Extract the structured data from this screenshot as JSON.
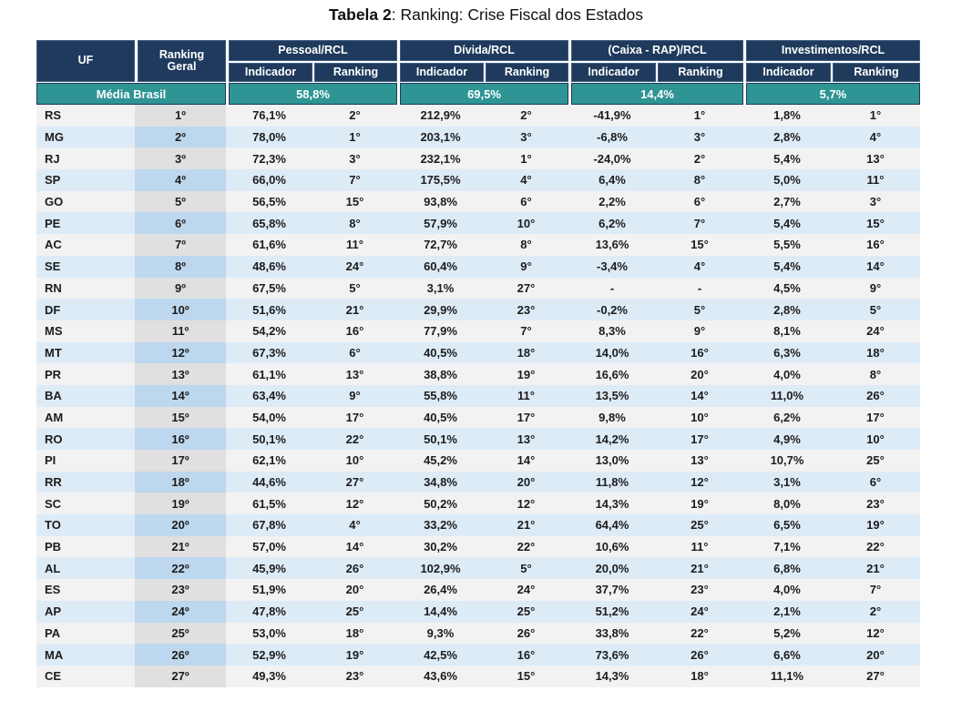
{
  "title": {
    "bold": "Tabela 2",
    "rest": ": Ranking: Crise Fiscal dos Estados"
  },
  "header": {
    "uf": "UF",
    "ranking_geral_line1": "Ranking",
    "ranking_geral_line2": "Geral",
    "groups": [
      {
        "label": "Pessoal/RCL",
        "sub": [
          "Indicador",
          "Ranking"
        ]
      },
      {
        "label": "Dívida/RCL",
        "sub": [
          "Indicador",
          "Ranking"
        ]
      },
      {
        "label": "(Caixa - RAP)/RCL",
        "sub": [
          "Indicador",
          "Ranking"
        ]
      },
      {
        "label": "Investimentos/RCL",
        "sub": [
          "Indicador",
          "Ranking"
        ]
      }
    ]
  },
  "media": {
    "label": "Média Brasil",
    "values": [
      "58,8%",
      "69,5%",
      "14,4%",
      "5,7%"
    ]
  },
  "rows": [
    {
      "uf": "RS",
      "geral": "1º",
      "cells": [
        "76,1%",
        "2°",
        "212,9%",
        "2°",
        "-41,9%",
        "1°",
        "1,8%",
        "1°"
      ]
    },
    {
      "uf": "MG",
      "geral": "2º",
      "cells": [
        "78,0%",
        "1°",
        "203,1%",
        "3°",
        "-6,8%",
        "3°",
        "2,8%",
        "4°"
      ]
    },
    {
      "uf": "RJ",
      "geral": "3º",
      "cells": [
        "72,3%",
        "3°",
        "232,1%",
        "1°",
        "-24,0%",
        "2°",
        "5,4%",
        "13°"
      ]
    },
    {
      "uf": "SP",
      "geral": "4º",
      "cells": [
        "66,0%",
        "7°",
        "175,5%",
        "4°",
        "6,4%",
        "8°",
        "5,0%",
        "11°"
      ]
    },
    {
      "uf": "GO",
      "geral": "5º",
      "cells": [
        "56,5%",
        "15°",
        "93,8%",
        "6°",
        "2,2%",
        "6°",
        "2,7%",
        "3°"
      ]
    },
    {
      "uf": "PE",
      "geral": "6º",
      "cells": [
        "65,8%",
        "8°",
        "57,9%",
        "10°",
        "6,2%",
        "7°",
        "5,4%",
        "15°"
      ]
    },
    {
      "uf": "AC",
      "geral": "7º",
      "cells": [
        "61,6%",
        "11°",
        "72,7%",
        "8°",
        "13,6%",
        "15°",
        "5,5%",
        "16°"
      ]
    },
    {
      "uf": "SE",
      "geral": "8º",
      "cells": [
        "48,6%",
        "24°",
        "60,4%",
        "9°",
        "-3,4%",
        "4°",
        "5,4%",
        "14°"
      ]
    },
    {
      "uf": "RN",
      "geral": "9º",
      "cells": [
        "67,5%",
        "5°",
        "3,1%",
        "27°",
        "-",
        "-",
        "4,5%",
        "9°"
      ]
    },
    {
      "uf": "DF",
      "geral": "10º",
      "cells": [
        "51,6%",
        "21°",
        "29,9%",
        "23°",
        "-0,2%",
        "5°",
        "2,8%",
        "5°"
      ]
    },
    {
      "uf": "MS",
      "geral": "11º",
      "cells": [
        "54,2%",
        "16°",
        "77,9%",
        "7°",
        "8,3%",
        "9°",
        "8,1%",
        "24°"
      ]
    },
    {
      "uf": "MT",
      "geral": "12º",
      "cells": [
        "67,3%",
        "6°",
        "40,5%",
        "18°",
        "14,0%",
        "16°",
        "6,3%",
        "18°"
      ]
    },
    {
      "uf": "PR",
      "geral": "13º",
      "cells": [
        "61,1%",
        "13°",
        "38,8%",
        "19°",
        "16,6%",
        "20°",
        "4,0%",
        "8°"
      ]
    },
    {
      "uf": "BA",
      "geral": "14º",
      "cells": [
        "63,4%",
        "9°",
        "55,8%",
        "11°",
        "13,5%",
        "14°",
        "11,0%",
        "26°"
      ]
    },
    {
      "uf": "AM",
      "geral": "15º",
      "cells": [
        "54,0%",
        "17°",
        "40,5%",
        "17°",
        "9,8%",
        "10°",
        "6,2%",
        "17°"
      ]
    },
    {
      "uf": "RO",
      "geral": "16º",
      "cells": [
        "50,1%",
        "22°",
        "50,1%",
        "13°",
        "14,2%",
        "17°",
        "4,9%",
        "10°"
      ]
    },
    {
      "uf": "PI",
      "geral": "17º",
      "cells": [
        "62,1%",
        "10°",
        "45,2%",
        "14°",
        "13,0%",
        "13°",
        "10,7%",
        "25°"
      ]
    },
    {
      "uf": "RR",
      "geral": "18º",
      "cells": [
        "44,6%",
        "27°",
        "34,8%",
        "20°",
        "11,8%",
        "12°",
        "3,1%",
        "6°"
      ]
    },
    {
      "uf": "SC",
      "geral": "19º",
      "cells": [
        "61,5%",
        "12°",
        "50,2%",
        "12°",
        "14,3%",
        "19°",
        "8,0%",
        "23°"
      ]
    },
    {
      "uf": "TO",
      "geral": "20º",
      "cells": [
        "67,8%",
        "4°",
        "33,2%",
        "21°",
        "64,4%",
        "25°",
        "6,5%",
        "19°"
      ]
    },
    {
      "uf": "PB",
      "geral": "21º",
      "cells": [
        "57,0%",
        "14°",
        "30,2%",
        "22°",
        "10,6%",
        "11°",
        "7,1%",
        "22°"
      ]
    },
    {
      "uf": "AL",
      "geral": "22º",
      "cells": [
        "45,9%",
        "26°",
        "102,9%",
        "5°",
        "20,0%",
        "21°",
        "6,8%",
        "21°"
      ]
    },
    {
      "uf": "ES",
      "geral": "23º",
      "cells": [
        "51,9%",
        "20°",
        "26,4%",
        "24°",
        "37,7%",
        "23°",
        "4,0%",
        "7°"
      ]
    },
    {
      "uf": "AP",
      "geral": "24º",
      "cells": [
        "47,8%",
        "25°",
        "14,4%",
        "25°",
        "51,2%",
        "24°",
        "2,1%",
        "2°"
      ]
    },
    {
      "uf": "PA",
      "geral": "25º",
      "cells": [
        "53,0%",
        "18°",
        "9,3%",
        "26°",
        "33,8%",
        "22°",
        "5,2%",
        "12°"
      ]
    },
    {
      "uf": "MA",
      "geral": "26º",
      "cells": [
        "52,9%",
        "19°",
        "42,5%",
        "16°",
        "73,6%",
        "26°",
        "6,6%",
        "20°"
      ]
    },
    {
      "uf": "CE",
      "geral": "27º",
      "cells": [
        "49,3%",
        "23°",
        "43,6%",
        "15°",
        "14,3%",
        "18°",
        "11,1%",
        "27°"
      ]
    }
  ],
  "corner_marks": "· ·",
  "colors": {
    "navy": "#1f3a5c",
    "teal": "#2e9494",
    "rowOdd": "#f2f2f2",
    "rowEven": "#ddebf7",
    "geralOdd": "#e0e0e0",
    "geralEven": "#bdd7ee"
  }
}
